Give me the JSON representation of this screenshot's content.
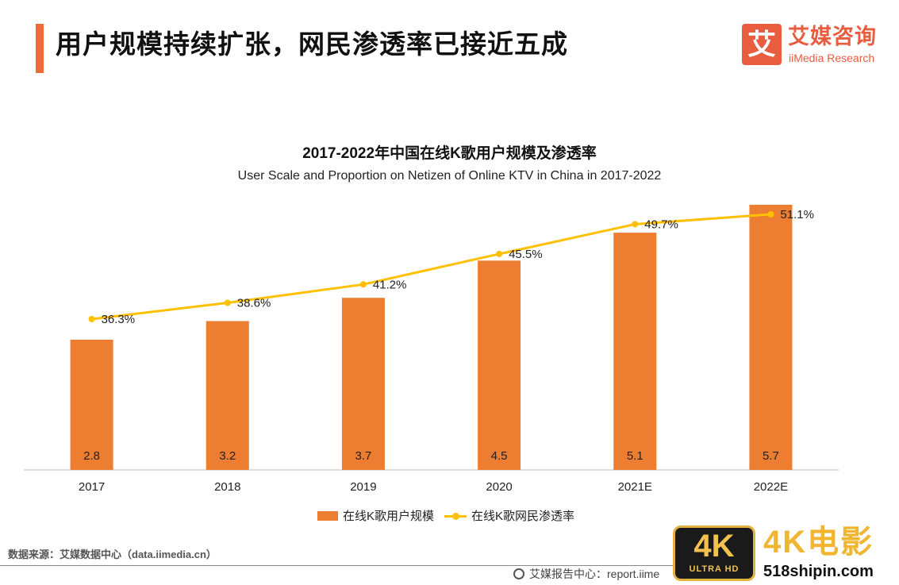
{
  "header": {
    "title": "用户规模持续扩张，网民渗透率已接近五成",
    "logo_mark": "艾",
    "logo_cn": "艾媒咨询",
    "logo_en": "iiMedia Research"
  },
  "chart_data": {
    "type": "bar",
    "title": "2017-2022年中国在线K歌用户规模及渗透率",
    "subtitle": "User Scale and Proportion on Netizen of Online KTV in China in 2017-2022",
    "categories": [
      "2017",
      "2018",
      "2019",
      "2020",
      "2021E",
      "2022E"
    ],
    "series": [
      {
        "name": "在线K歌用户规模",
        "type": "bar",
        "values": [
          2.8,
          3.2,
          3.7,
          4.5,
          5.1,
          5.7
        ],
        "labels": [
          "2.8",
          "3.2",
          "3.7",
          "4.5",
          "5.1",
          "5.7"
        ],
        "color": "#ed7d31"
      },
      {
        "name": "在线K歌网民渗透率",
        "type": "line",
        "values": [
          36.3,
          38.6,
          41.2,
          45.5,
          49.7,
          51.1
        ],
        "labels": [
          "36.3%",
          "38.6%",
          "41.2%",
          "45.5%",
          "49.7%",
          "51.1%"
        ],
        "color": "#ffc000"
      }
    ],
    "y_bar_range": [
      0,
      5.7
    ],
    "y_line_range": [
      15,
      51.1
    ],
    "grid": false,
    "legend_position": "bottom"
  },
  "footer": {
    "source": "数据来源：艾媒数据中心（data.iimedia.cn）",
    "report": "艾媒报告中心：report.iime"
  },
  "watermark": {
    "badge_top": "4K",
    "badge_bottom": "ULTRA HD",
    "brand": "4K电影",
    "site": "518shipin.com"
  }
}
